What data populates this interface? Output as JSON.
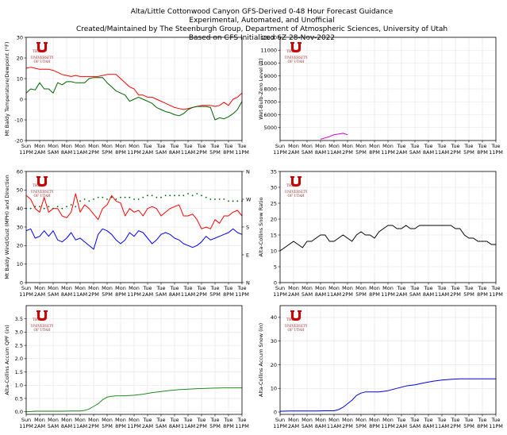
{
  "figure": {
    "title_lines": [
      "Alta/Little Cottonwood Canyon GFS-Derived 0-48 Hour Forecast Guidance",
      "Experimental, Automated, and Unofficial",
      "Created/Maintained by The Steenburgh Group, Department of Atmospheric Sciences, University of Utah",
      "Based on GFS Initialized 6Z 28-Nov-2022"
    ],
    "logo": {
      "small": "THE",
      "line1": "UNIVERSITY",
      "line2": "OF UTAH"
    }
  },
  "x_ticks": [
    [
      "Sun",
      "11PM"
    ],
    [
      "Mon",
      "2AM"
    ],
    [
      "Mon",
      "5AM"
    ],
    [
      "Mon",
      "8AM"
    ],
    [
      "Mon",
      "11AM"
    ],
    [
      "Mon",
      "2PM"
    ],
    [
      "Mon",
      "5PM"
    ],
    [
      "Mon",
      "8PM"
    ],
    [
      "Mon",
      "11PM"
    ],
    [
      "Tue",
      "2AM"
    ],
    [
      "Tue",
      "5AM"
    ],
    [
      "Tue",
      "8AM"
    ],
    [
      "Tue",
      "11AM"
    ],
    [
      "Tue",
      "2PM"
    ],
    [
      "Tue",
      "5PM"
    ],
    [
      "Tue",
      "8PM"
    ],
    [
      "Tue",
      "11PM"
    ]
  ],
  "chart_data": [
    {
      "id": "temp",
      "type": "line",
      "ylabel": "Mt Baldy Temperature/Dewpoint (°F)",
      "ylim": [
        -20,
        30
      ],
      "yticks": [
        -20,
        -10,
        0,
        10,
        20,
        30
      ],
      "x_hours": [
        0,
        1,
        2,
        3,
        4,
        5,
        6,
        7,
        8,
        9,
        10,
        11,
        12,
        13,
        14,
        15,
        16,
        17,
        18,
        19,
        20,
        21,
        22,
        23,
        24,
        25,
        26,
        27,
        28,
        29,
        30,
        31,
        32,
        33,
        34,
        35,
        36,
        37,
        38,
        39,
        40,
        41,
        42,
        43,
        44,
        45,
        46,
        47,
        48
      ],
      "series": [
        {
          "name": "Temperature",
          "color": "#ff0000",
          "values": [
            15,
            15.5,
            15,
            14.5,
            14.5,
            14.5,
            14,
            13,
            12,
            11.5,
            11,
            11.5,
            11,
            11,
            11,
            11,
            11,
            11.5,
            12,
            12,
            12,
            10,
            8,
            6,
            5,
            2,
            2,
            1,
            1,
            0,
            -1,
            -2,
            -3,
            -4,
            -4.5,
            -5,
            -4.5,
            -4,
            -3.5,
            -3,
            -3,
            -3,
            -3.5,
            -3,
            -1.5,
            -3,
            0,
            1,
            3
          ]
        },
        {
          "name": "Dewpoint",
          "color": "#006400",
          "values": [
            3,
            5,
            4.5,
            8,
            5,
            5,
            3,
            8,
            7,
            8.5,
            8.5,
            8,
            8,
            8,
            10,
            10.5,
            10.5,
            10.5,
            8,
            6,
            4,
            3,
            2,
            -1,
            0,
            1,
            0,
            -1,
            -2,
            -4,
            -5,
            -6,
            -6.5,
            -7.5,
            -8,
            -7,
            -5,
            -4,
            -3.5,
            -3.5,
            -3.5,
            -4,
            -10,
            -9,
            -9.5,
            -8.5,
            -7,
            -5,
            -1
          ]
        }
      ]
    },
    {
      "id": "wbzl",
      "type": "line",
      "ylabel": "Wet-Bulb-Zero Level (ft)",
      "ylim": [
        4000,
        12000
      ],
      "yticks": [
        5000,
        6000,
        7000,
        8000,
        9000,
        10000,
        11000,
        12000
      ],
      "x_hours": [
        9,
        10,
        11,
        12,
        13,
        14,
        15
      ],
      "series": [
        {
          "name": "Wet-Bulb-Zero Level",
          "color": "#cc00cc",
          "values": [
            4100,
            4200,
            4300,
            4450,
            4500,
            4560,
            4450
          ]
        }
      ]
    },
    {
      "id": "wind",
      "type": "line",
      "ylabel": "Mt Baldy Wind/Gust (MPH) and Direction",
      "ylim": [
        0,
        60
      ],
      "yticks": [
        0,
        10,
        20,
        30,
        40,
        50,
        60
      ],
      "right_ticks": [
        "N",
        "E",
        "S",
        "W",
        "N"
      ],
      "x_hours": [
        0,
        1,
        2,
        3,
        4,
        5,
        6,
        7,
        8,
        9,
        10,
        11,
        12,
        13,
        14,
        15,
        16,
        17,
        18,
        19,
        20,
        21,
        22,
        23,
        24,
        25,
        26,
        27,
        28,
        29,
        30,
        31,
        32,
        33,
        34,
        35,
        36,
        37,
        38,
        39,
        40,
        41,
        42,
        43,
        44,
        45,
        46,
        47,
        48
      ],
      "series": [
        {
          "name": "Gust",
          "color": "#ff0000",
          "values": [
            47,
            45,
            40,
            38,
            46,
            38,
            40,
            40,
            36,
            35,
            38,
            48,
            38,
            42,
            40,
            37,
            34,
            40,
            42,
            47,
            44,
            43,
            36,
            40,
            38,
            39,
            36,
            40,
            41,
            40,
            36,
            38,
            40,
            41,
            42,
            36,
            36,
            37,
            34,
            29,
            30,
            29,
            34,
            32,
            36,
            36,
            38,
            39,
            36
          ]
        },
        {
          "name": "Wind",
          "color": "#0000ff",
          "values": [
            28,
            29,
            24,
            25,
            28,
            25,
            28,
            23,
            22,
            24,
            27,
            23,
            24,
            22,
            20,
            18,
            26,
            29,
            28,
            26,
            23,
            21,
            23,
            27,
            25,
            28,
            27,
            24,
            21,
            23,
            26,
            27,
            26,
            24,
            23,
            21,
            20,
            19,
            20,
            22,
            25,
            23,
            24,
            25,
            26,
            27,
            29,
            27,
            26
          ]
        },
        {
          "name": "Direction",
          "color": "#006400",
          "style": "dots",
          "values": [
            40,
            40,
            41,
            41,
            40,
            41,
            40,
            41,
            40,
            41,
            42,
            41,
            44,
            45,
            44,
            45,
            46,
            46,
            45,
            46,
            45,
            46,
            46,
            46,
            45,
            45,
            46,
            47,
            47,
            46,
            46,
            47,
            47,
            47,
            47,
            47,
            48,
            47,
            48,
            47,
            46,
            45,
            45,
            45,
            45,
            44,
            44,
            44,
            44
          ]
        }
      ]
    },
    {
      "id": "slr",
      "type": "line",
      "ylabel": "Alta-Collins Snow Ratio",
      "ylim": [
        0,
        35
      ],
      "yticks": [
        0,
        5,
        10,
        15,
        20,
        25,
        30,
        35
      ],
      "x_hours": [
        0,
        1,
        2,
        3,
        4,
        5,
        6,
        7,
        8,
        9,
        10,
        11,
        12,
        13,
        14,
        15,
        16,
        17,
        18,
        19,
        20,
        21,
        22,
        23,
        24,
        25,
        26,
        27,
        28,
        29,
        30,
        31,
        32,
        33,
        34,
        35,
        36,
        37,
        38,
        39,
        40,
        41,
        42,
        43,
        44,
        45,
        46,
        47,
        48
      ],
      "series": [
        {
          "name": "Snow Ratio",
          "color": "#000000",
          "values": [
            10,
            11,
            12,
            13,
            12,
            11,
            13,
            13,
            14,
            15,
            15,
            13,
            13,
            14,
            15,
            14,
            13,
            15,
            16,
            15,
            15,
            14,
            16,
            17,
            18,
            18,
            17,
            17,
            18,
            17,
            17,
            18,
            18,
            18,
            18,
            18,
            18,
            18,
            18,
            17,
            17,
            15,
            14,
            14,
            13,
            13,
            13,
            12,
            12
          ]
        }
      ]
    },
    {
      "id": "qpf",
      "type": "line",
      "ylabel": "Alta-Collins Accum QPF (in)",
      "ylim": [
        -0.1,
        4.0
      ],
      "yticks": [
        0.0,
        0.5,
        1.0,
        1.5,
        2.0,
        2.5,
        3.0,
        3.5
      ],
      "x_hours": [
        0,
        2,
        4,
        6,
        8,
        10,
        12,
        13,
        14,
        15,
        16,
        17,
        18,
        19,
        20,
        21,
        22,
        24,
        26,
        28,
        30,
        32,
        34,
        36,
        38,
        40,
        42,
        44,
        46,
        48
      ],
      "series": [
        {
          "name": "Accum QPF",
          "color": "#228b22",
          "values": [
            0.0,
            0.02,
            0.02,
            0.02,
            0.02,
            0.03,
            0.03,
            0.05,
            0.1,
            0.2,
            0.3,
            0.45,
            0.55,
            0.58,
            0.6,
            0.6,
            0.6,
            0.62,
            0.66,
            0.72,
            0.76,
            0.8,
            0.83,
            0.85,
            0.87,
            0.88,
            0.89,
            0.9,
            0.9,
            0.9
          ]
        }
      ]
    },
    {
      "id": "snow",
      "type": "line",
      "ylabel": "Alta-Collins Accum Snow (in)",
      "ylim": [
        -1,
        45
      ],
      "yticks": [
        0,
        10,
        20,
        30,
        40
      ],
      "x_hours": [
        0,
        2,
        4,
        6,
        8,
        10,
        12,
        13,
        14,
        15,
        16,
        17,
        18,
        19,
        20,
        21,
        22,
        24,
        26,
        28,
        30,
        32,
        34,
        36,
        38,
        40,
        42,
        44,
        46,
        48
      ],
      "series": [
        {
          "name": "Accum Snow",
          "color": "#0000ff",
          "values": [
            0.3,
            0.4,
            0.4,
            0.4,
            0.4,
            0.5,
            0.5,
            1,
            2,
            3.5,
            5,
            7,
            8,
            8.5,
            8.5,
            8.5,
            8.5,
            9,
            10,
            11,
            11.5,
            12.3,
            13,
            13.5,
            13.8,
            14,
            14,
            14,
            14,
            14
          ]
        }
      ]
    }
  ]
}
